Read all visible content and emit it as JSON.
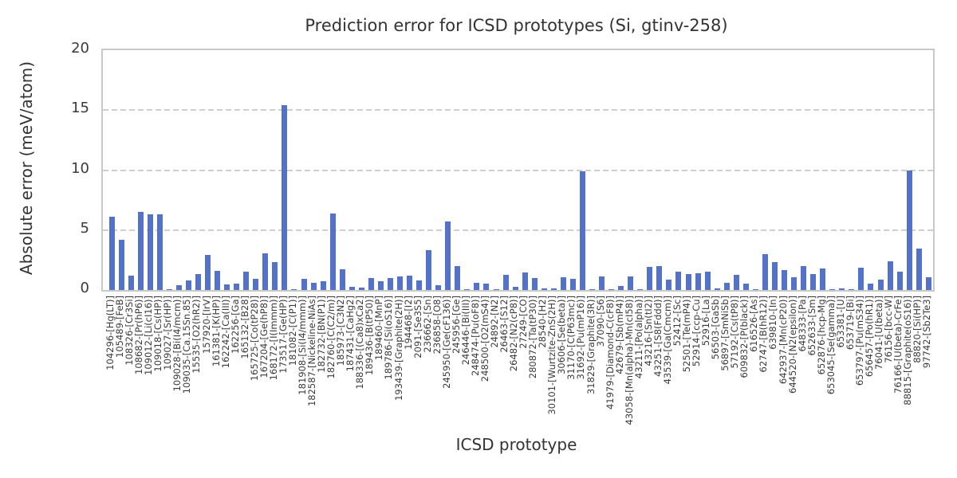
{
  "chart_data": {
    "type": "bar",
    "title": "Prediction error for ICSD prototypes (Si, gtinv-258)",
    "xlabel": "ICSD prototype",
    "ylabel": "Absolute error (meV/atom)",
    "ylim": [
      0,
      20
    ],
    "yticks": [
      0,
      5,
      10,
      15,
      20
    ],
    "grid": "horizontal-dashed",
    "legend": "none",
    "bar_color": "#5472C8",
    "grid_color": "#cfcfcf",
    "spine_color": "#c9c9c9",
    "text_color": "#333333",
    "tick_color": "#3a3a3a",
    "categories": [
      "104296-[Hg(LT)]",
      "105489-[FeB]",
      "108326-[Cr3Si]",
      "108682-[Pr(hP6)]",
      "109012-[Li(cI16)]",
      "109018-[Cs(HP)]",
      "109027-[Sr(HP)]",
      "109028-[Bi(I4/mcm)]",
      "109035-[Ca.15Sn.85]",
      "15535-[O2(hR2)]",
      "157920-[IrV]",
      "161381-[K(HP)]",
      "162242-[Ca(III)]",
      "162256-[Ga]",
      "165132-[B28]",
      "165725-[Co(tP28)]",
      "167204-[Ge(hP8)]",
      "168172-[I(Immm)]",
      "173517-[Ge(HP)]",
      "181082-[C(P1)]",
      "181908-[Si(I4/mmm)]",
      "182587-[Nickeline-NiAs]",
      "182732-[BN(P1)]",
      "182760-[C(C2/m)]",
      "185973-[C3N2]",
      "187431-[CaHg2]",
      "188336-[(Ca8)xCa2]",
      "189436-[B(tP50)]",
      "189460-[MnP]",
      "189786-[Si(oS16)]",
      "193439-[Graphite(2H)]",
      "194468-[I2]",
      "2091-[Se3S5]",
      "236662-[Sn]",
      "236858-[O8]",
      "245950-[Ge(cF136)]",
      "245956-[Ge]",
      "246446-[Bi(III)]",
      "248474-[Pu(oF8)]",
      "248500-[O2(mS4)]",
      "24892-[N2]",
      "26463-[S12]",
      "26482-[N2(cP8)]",
      "27249-[CO]",
      "280872-[Ta(tP30)]",
      "28540-[H2]",
      "30101-[Wurtzite-ZnS(2H)]",
      "30606-[Se(beta)]",
      "31170-[C(P63mc)]",
      "31692-[Pu(mP16)]",
      "31829-[Graphite(3R)]",
      "37090-[S6]",
      "41979-[Diamond-C(cF8)]",
      "42679-[Sb(mP4)]",
      "43058-[Mn(alpha)-Mn(cI58)]",
      "43211-[Po(alpha)]",
      "43216-[Sn(tI2)]",
      "43251-[S8(Fddd)]",
      "43539-[Ga(Cmcm)]",
      "52412-[Sc]",
      "52501-[Te(mP4)]",
      "52914-[ccp-Cu]",
      "52916-[La]",
      "56503-[GaSb]",
      "56897-[SmNiSb]",
      "57192-[Cs(tP8)]",
      "609832-[P(black)]",
      "616526-[As]",
      "62747-[B(hR12)]",
      "639810-[In]",
      "642937-[Mn(cP20)]",
      "644520-[N2(epsilon)]",
      "648333-[Pa]",
      "652633-[Sm]",
      "652876-[hcp-Mg]",
      "653045-[Se(gamma)]",
      "653381-[U]",
      "653719-[Bi]",
      "653797-[Pu(mS34)]",
      "656457-[Po(hR1)]",
      "76041-[U(beta)]",
      "76156-[bcc-W]",
      "76166-[U(beta)-CrFe]",
      "88815-[Graphite(oS16)]",
      "88820-[Si(HP)]",
      "97742-[Sb2Te3]"
    ],
    "values": [
      6.1,
      4.2,
      1.2,
      6.5,
      6.3,
      6.3,
      0.05,
      0.4,
      0.8,
      1.3,
      2.95,
      1.6,
      0.45,
      0.55,
      1.5,
      0.9,
      3.05,
      2.35,
      15.4,
      0.05,
      0.95,
      0.6,
      0.75,
      6.35,
      1.7,
      0.25,
      0.2,
      1.0,
      0.75,
      1.0,
      1.1,
      1.2,
      0.8,
      3.3,
      0.4,
      5.7,
      2.0,
      0.1,
      0.6,
      0.5,
      0.1,
      1.25,
      0.25,
      1.45,
      1.0,
      0.15,
      0.15,
      1.05,
      0.95,
      9.9,
      0.05,
      1.15,
      0.05,
      0.35,
      1.1,
      0.05,
      1.95,
      2.0,
      0.85,
      1.5,
      1.35,
      1.4,
      1.55,
      0.15,
      0.6,
      1.25,
      0.5,
      0.05,
      3.0,
      2.35,
      1.65,
      1.05,
      2.0,
      1.3,
      1.8,
      0.05,
      0.15,
      0.05,
      1.85,
      0.55,
      0.85,
      2.4,
      1.55,
      10.0,
      3.45,
      1.05
    ]
  }
}
